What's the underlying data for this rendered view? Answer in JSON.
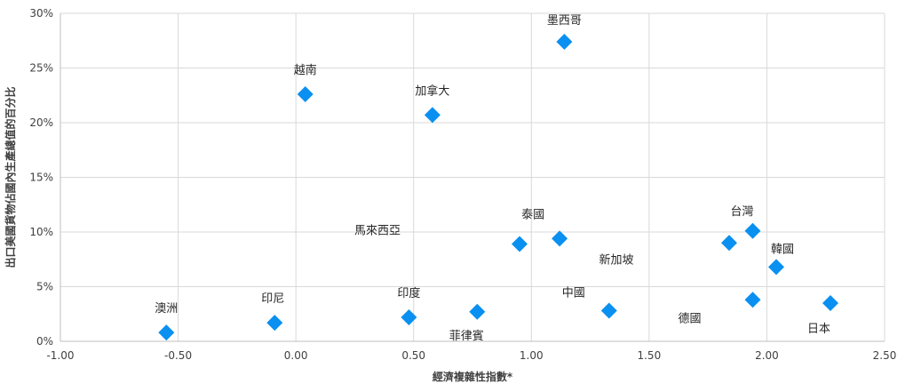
{
  "chart_data": {
    "type": "scatter",
    "title": "",
    "xlabel": "經濟複雜性指數*",
    "ylabel": "出口美國貨物佔國內生產總值的百分比",
    "xlim": [
      -1.0,
      2.5
    ],
    "ylim": [
      0,
      30
    ],
    "x_ticks": [
      "-1.00",
      "-0.50",
      "0.00",
      "0.50",
      "1.00",
      "1.50",
      "2.00",
      "2.50"
    ],
    "y_ticks": [
      "0%",
      "5%",
      "10%",
      "15%",
      "20%",
      "25%",
      "30%"
    ],
    "grid": true,
    "legend": "none",
    "marker": "diamond",
    "marker_color": "#0a90f0",
    "points": [
      {
        "label": "澳洲",
        "x": -0.55,
        "y": 0.8
      },
      {
        "label": "印尼",
        "x": -0.09,
        "y": 1.7
      },
      {
        "label": "越南",
        "x": 0.04,
        "y": 22.6
      },
      {
        "label": "印度",
        "x": 0.48,
        "y": 2.2
      },
      {
        "label": "加拿大",
        "x": 0.58,
        "y": 20.7
      },
      {
        "label": "菲律賓",
        "x": 0.77,
        "y": 2.7
      },
      {
        "label": "馬來西亞",
        "x": 0.95,
        "y": 8.9
      },
      {
        "label": "泰國",
        "x": 1.12,
        "y": 9.4
      },
      {
        "label": "墨西哥",
        "x": 1.14,
        "y": 27.4
      },
      {
        "label": "中國",
        "x": 1.33,
        "y": 2.8
      },
      {
        "label": "新加坡",
        "x": 1.84,
        "y": 9.0
      },
      {
        "label": "德國",
        "x": 1.94,
        "y": 3.8
      },
      {
        "label": "台灣",
        "x": 1.94,
        "y": 10.1
      },
      {
        "label": "韓國",
        "x": 2.04,
        "y": 6.8
      },
      {
        "label": "日本",
        "x": 2.27,
        "y": 3.5
      }
    ]
  }
}
